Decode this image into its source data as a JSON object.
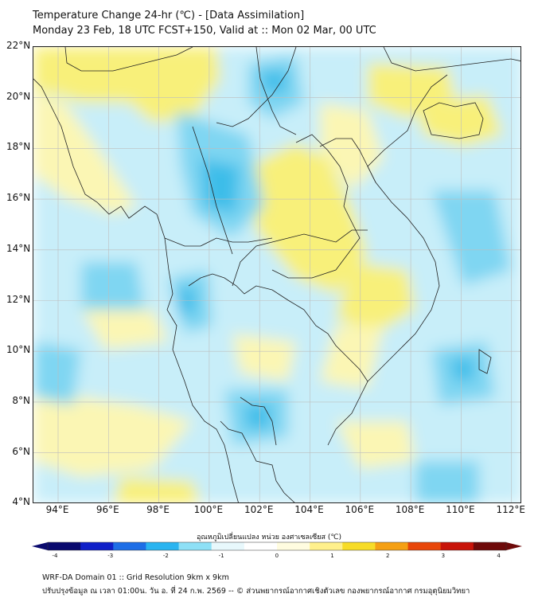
{
  "title": {
    "line1": "Temperature Change 24-hr (℃) - [Data Assimilation]",
    "line2": "Monday 23 Feb, 18 UTC FCST+150, Valid at :: Mon 02 Mar, 00 UTC"
  },
  "axes": {
    "lat_labels": [
      "22°N",
      "20°N",
      "18°N",
      "16°N",
      "14°N",
      "12°N",
      "10°N",
      "8°N",
      "6°N",
      "4°N"
    ],
    "lon_labels": [
      "94°E",
      "96°E",
      "98°E",
      "100°E",
      "102°E",
      "104°E",
      "106°E",
      "108°E",
      "110°E",
      "112°E"
    ]
  },
  "colorbar": {
    "title": "อุณหภูมิเปลี่ยนแปลง หน่วย องศาเซลเซียส (℃)",
    "ticks": [
      "-4",
      "-3",
      "-2",
      "-1",
      "0",
      "1",
      "2",
      "3",
      "4"
    ],
    "colors": [
      "#0a0a6e",
      "#1020c8",
      "#1e6ee6",
      "#2ab4f0",
      "#8ee0f6",
      "#e8f8fc",
      "#ffffff",
      "#fffce0",
      "#fff08c",
      "#f7dc28",
      "#f5a014",
      "#e8460a",
      "#c8140a",
      "#6e0a0a"
    ]
  },
  "footer": {
    "line1": "WRF-DA Domain 01 :: Grid Resolution 9km x 9km",
    "line2": "ปรับปรุงข้อมูล ณ เวลา 01:00น. วัน อ. ที่ 24 ก.พ. 2569 -- © ส่วนพยากรณ์อากาศเชิงตัวเลข กองพยากรณ์อากาศ กรมอุตุนิยมวิทยา"
  },
  "map_colors": {
    "warm": "#f8f07a",
    "warm_light": "#fbf6b4",
    "cool": "#7fd6f2",
    "cool_strong": "#3cbde9",
    "cool_light": "#c8eef9",
    "coast": "#222222",
    "grid": "#bdbdbd"
  }
}
